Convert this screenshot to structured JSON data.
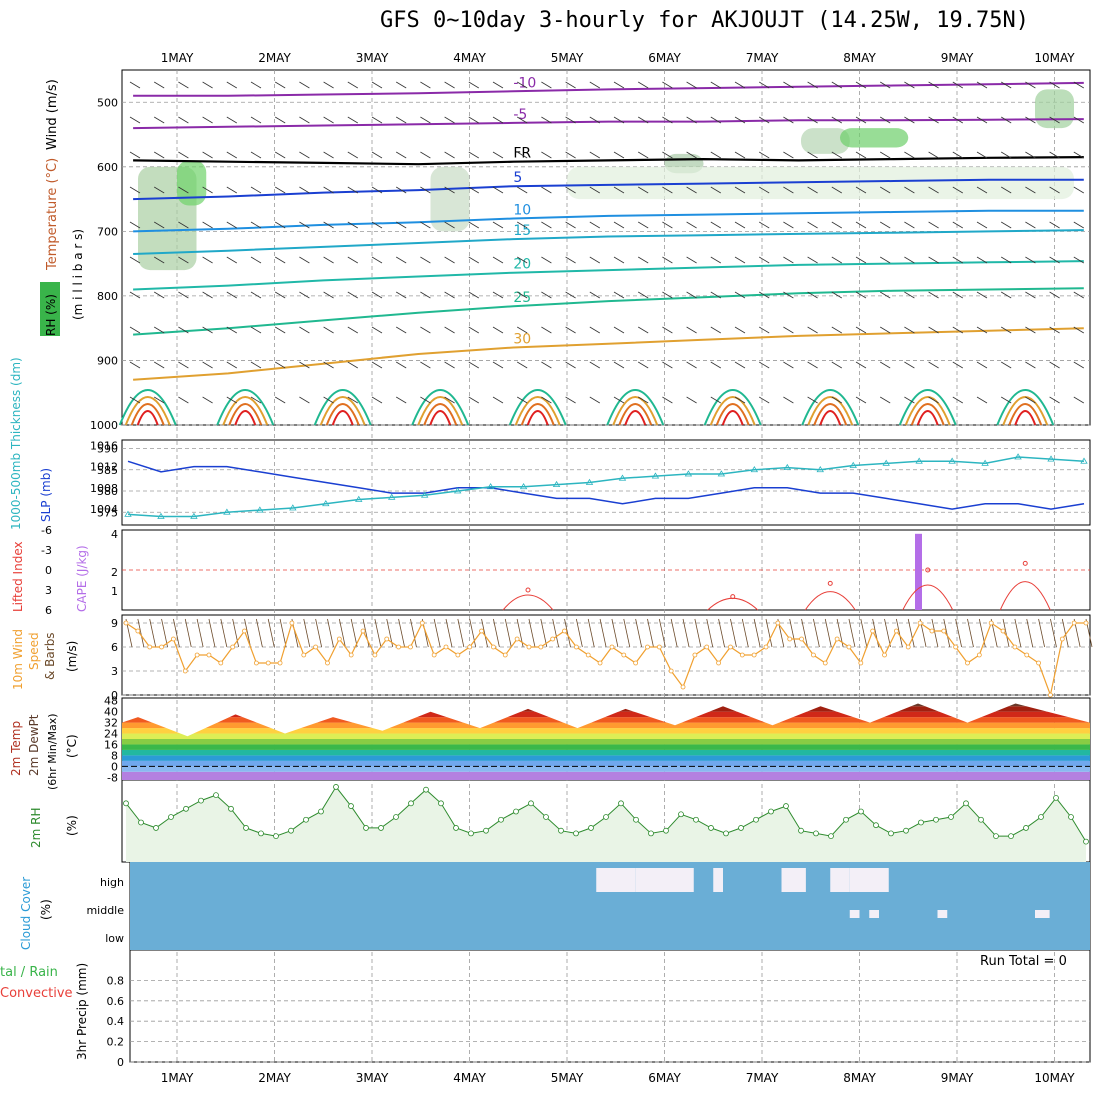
{
  "title": "GFS 0~10day 3-hourly for AKJOUJT (14.25W, 19.75N)",
  "dates": [
    "1MAY",
    "2MAY",
    "3MAY",
    "4MAY",
    "5MAY",
    "6MAY",
    "7MAY",
    "8MAY",
    "9MAY",
    "10MAY"
  ],
  "colors": {
    "grid": "#9a9a9a",
    "slp": "#1a3fd1",
    "thickness": "#2cb5c0",
    "li": "#e8403a",
    "cape": "#b46ee8",
    "wind_speed": "#f0a030",
    "barb": "#6b4a2a",
    "rh": "#2e8b2e",
    "cloud": "#6aaed6",
    "cloud_gap": "#f3eff7",
    "rh_fill": "#e9f4e6"
  },
  "labels": {
    "upper_wind": "Wind (m/s)",
    "upper_temp": "Temperature (°C)",
    "upper_rh": "RH (%)",
    "upper_pressure": "(m i l l i b a r s)",
    "thickness": "1000-500mb Thickness (dm)",
    "slp": "SLP (mb)",
    "li": "Lifted Index",
    "cape": "CAPE (J/kg)",
    "wind10_a": "10m Wind",
    "wind10_b": "Speed",
    "wind10_c": "& Barbs",
    "wind10_unit": "(m/s)",
    "temp_a": "2m Temp",
    "temp_b": "2m DewPt",
    "temp_c": "(6hr Min/Max)",
    "temp_unit": "(°C)",
    "rh2m": "2m RH",
    "rh2m_unit": "(%)",
    "cloud_a": "Cloud Cover",
    "cloud_unit": "(%)",
    "precip_a": "tal / Rain",
    "precip_b": "Convective",
    "precip_c": "3hr Precip (mm)",
    "run_total": "Run Total = 0"
  },
  "chart_data": [
    {
      "type": "heatmap",
      "panel": "upper-air cross-section",
      "y_ticks": [
        "500",
        "600",
        "700",
        "800",
        "900",
        "1000"
      ],
      "ylabel": "(m i l l i b a r s)",
      "ylim": [
        1000,
        450
      ],
      "isotherm_labels": [
        "-10",
        "-5",
        "FR",
        "5",
        "10",
        "15",
        "20",
        "25",
        "30"
      ],
      "isotherms": [
        {
          "label": "-10",
          "p": [
            490,
            490,
            488,
            486,
            483,
            480,
            478,
            476,
            474,
            472,
            470
          ],
          "color": "#8a2aa8"
        },
        {
          "label": "-5",
          "p": [
            540,
            538,
            536,
            534,
            532,
            530,
            530,
            528,
            528,
            527,
            526
          ],
          "color": "#8a2aa8"
        },
        {
          "label": "FR",
          "p": [
            590,
            592,
            594,
            596,
            592,
            590,
            588,
            590,
            588,
            586,
            585
          ],
          "color": "#000000"
        },
        {
          "label": "5",
          "p": [
            650,
            646,
            640,
            636,
            630,
            628,
            626,
            624,
            622,
            620,
            620
          ],
          "color": "#1a3fd1"
        },
        {
          "label": "10",
          "p": [
            700,
            696,
            690,
            686,
            680,
            676,
            674,
            672,
            670,
            668,
            668
          ],
          "color": "#1f8fe0"
        },
        {
          "label": "15",
          "p": [
            735,
            730,
            724,
            718,
            712,
            708,
            706,
            704,
            702,
            700,
            698
          ],
          "color": "#20a8c8"
        },
        {
          "label": "20",
          "p": [
            790,
            784,
            776,
            770,
            764,
            760,
            756,
            752,
            750,
            748,
            746
          ],
          "color": "#20b8a8"
        },
        {
          "label": "25",
          "p": [
            860,
            850,
            838,
            826,
            816,
            808,
            802,
            796,
            792,
            790,
            788
          ],
          "color": "#20b890"
        },
        {
          "label": "30",
          "p": [
            930,
            920,
            905,
            890,
            880,
            874,
            868,
            862,
            858,
            854,
            850
          ],
          "color": "#e0a030"
        }
      ]
    },
    {
      "type": "line",
      "panel": "thickness-slp",
      "y_ticks_left": [
        "590",
        "585",
        "580",
        "575"
      ],
      "y_ticks_right": [
        "1016",
        "1012",
        "1008",
        "1004"
      ],
      "series": [
        {
          "name": "SLP (mb)",
          "values": [
            1013,
            1011,
            1012,
            1012,
            1011,
            1010,
            1009,
            1008,
            1007,
            1007,
            1008,
            1008,
            1007,
            1006,
            1006,
            1005,
            1006,
            1006,
            1007,
            1008,
            1008,
            1007,
            1007,
            1006,
            1005,
            1004,
            1005,
            1005,
            1004,
            1005
          ]
        },
        {
          "name": "1000-500mb Thickness (dm)",
          "values": [
            574.5,
            574,
            574,
            575,
            575.5,
            576,
            577,
            578,
            578.5,
            579,
            580,
            581,
            581,
            581.5,
            582,
            583,
            583.5,
            584,
            584,
            585,
            585.5,
            585,
            586,
            586.5,
            587,
            587,
            586.5,
            588,
            587.5,
            587
          ]
        }
      ]
    },
    {
      "type": "bar",
      "panel": "li-cape",
      "y_ticks_left": [
        "-6",
        "-3",
        "0",
        "3",
        "6"
      ],
      "y_ticks_right": [
        "4",
        "2",
        "1"
      ],
      "cape_bar": {
        "day": 8.6,
        "value": 4
      },
      "li_bumps": [
        {
          "center": 4.6,
          "value": 3
        },
        {
          "center": 6.7,
          "value": 4
        },
        {
          "center": 7.7,
          "value": 2
        },
        {
          "center": 8.7,
          "value": 0
        },
        {
          "center": 9.7,
          "value": -1
        }
      ]
    },
    {
      "type": "line",
      "panel": "10m wind",
      "y_ticks": [
        "9",
        "6",
        "3",
        "0"
      ],
      "ylim": [
        0,
        10
      ],
      "values": [
        9,
        8,
        6,
        6,
        7,
        3,
        5,
        5,
        4,
        6,
        8,
        4,
        4,
        4,
        9,
        5,
        6,
        4,
        7,
        5,
        8,
        5,
        7,
        6,
        6,
        9,
        5,
        6,
        5,
        6,
        8,
        6,
        5,
        7,
        6,
        6,
        7,
        8,
        6,
        5,
        4,
        6,
        5,
        4,
        6,
        6,
        3,
        1,
        5,
        6,
        4,
        6,
        5,
        5,
        6,
        9,
        7,
        7,
        5,
        4,
        7,
        6,
        4,
        8,
        5,
        8,
        6,
        9,
        8,
        8,
        6,
        4,
        5,
        9,
        8,
        6,
        5,
        4,
        0,
        7,
        9,
        9
      ]
    },
    {
      "type": "area",
      "panel": "2m temp",
      "y_ticks": [
        "48",
        "40",
        "32",
        "24",
        "16",
        "8",
        "0",
        "-8"
      ],
      "ylim": [
        -10,
        50
      ],
      "temp_max": [
        36,
        38,
        36,
        40,
        42,
        42,
        44,
        44,
        46,
        46
      ],
      "temp_min": [
        24,
        22,
        24,
        26,
        28,
        28,
        30,
        30,
        32,
        32
      ]
    },
    {
      "type": "line",
      "panel": "2m RH",
      "y_ticks": [],
      "ylim": [
        0,
        100
      ],
      "values": [
        40,
        26,
        22,
        30,
        36,
        42,
        46,
        36,
        22,
        18,
        16,
        20,
        28,
        34,
        52,
        38,
        22,
        22,
        30,
        40,
        50,
        40,
        22,
        18,
        20,
        28,
        34,
        40,
        30,
        20,
        18,
        22,
        30,
        40,
        28,
        18,
        20,
        32,
        28,
        22,
        18,
        22,
        28,
        34,
        38,
        20,
        18,
        16,
        28,
        34,
        24,
        18,
        20,
        26,
        28,
        30,
        40,
        28,
        16,
        16,
        22,
        30,
        44,
        30,
        12
      ]
    },
    {
      "type": "heatmap",
      "panel": "cloud cover",
      "y_ticks": [
        "high",
        "middle",
        "low"
      ],
      "high_blocks": [
        [
          5.3,
          5.6
        ],
        [
          5.6,
          5.7
        ],
        [
          5.7,
          6.2
        ],
        [
          6.2,
          6.3
        ],
        [
          6.5,
          6.6
        ],
        [
          7.2,
          7.45
        ],
        [
          7.7,
          7.9
        ],
        [
          7.9,
          8.3
        ]
      ],
      "low_blocks": [
        [
          7.9,
          8.0
        ],
        [
          8.1,
          8.2
        ],
        [
          8.8,
          8.9
        ],
        [
          9.8,
          9.95
        ]
      ]
    },
    {
      "type": "bar",
      "panel": "3hr precip",
      "y_ticks": [
        "0.8",
        "0.6",
        "0.4",
        "0.2",
        "0"
      ],
      "ylim": [
        0,
        1
      ],
      "values": []
    }
  ]
}
